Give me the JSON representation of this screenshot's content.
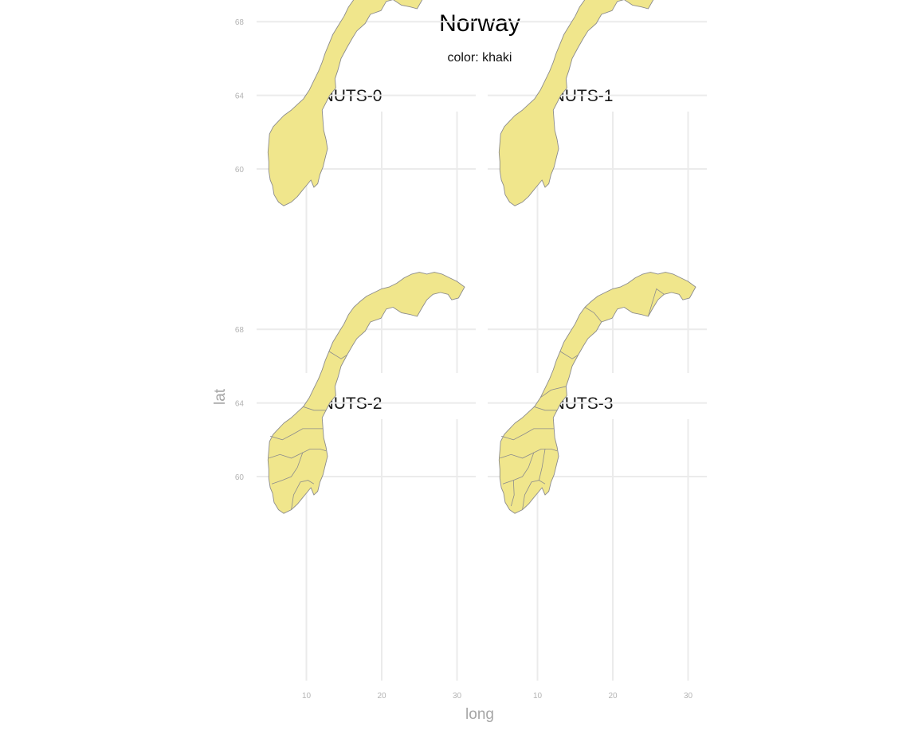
{
  "title": "Norway",
  "subtitle": "color: khaki",
  "fill_color": "#F0E68C",
  "outline_color": "#8C8C8C",
  "chart_data": {
    "type": "choropleth-facets",
    "region": "Norway",
    "fill": "khaki",
    "xlabel": "long",
    "ylabel": "lat",
    "xlim": [
      4.5,
      31.5
    ],
    "ylim": [
      57.8,
      71.5
    ],
    "x_ticks": [
      10,
      20,
      30
    ],
    "y_ticks": [
      60,
      64,
      68
    ],
    "x_tick_labels": [
      "10",
      "20",
      "30"
    ],
    "y_tick_labels": [
      "60",
      "64",
      "68"
    ],
    "grid": true,
    "facets": [
      {
        "label": "NUTS-0",
        "inner_borders": false
      },
      {
        "label": "NUTS-1",
        "inner_borders": false
      },
      {
        "label": "NUTS-2",
        "inner_borders": true
      },
      {
        "label": "NUTS-3",
        "inner_borders": true
      }
    ]
  }
}
